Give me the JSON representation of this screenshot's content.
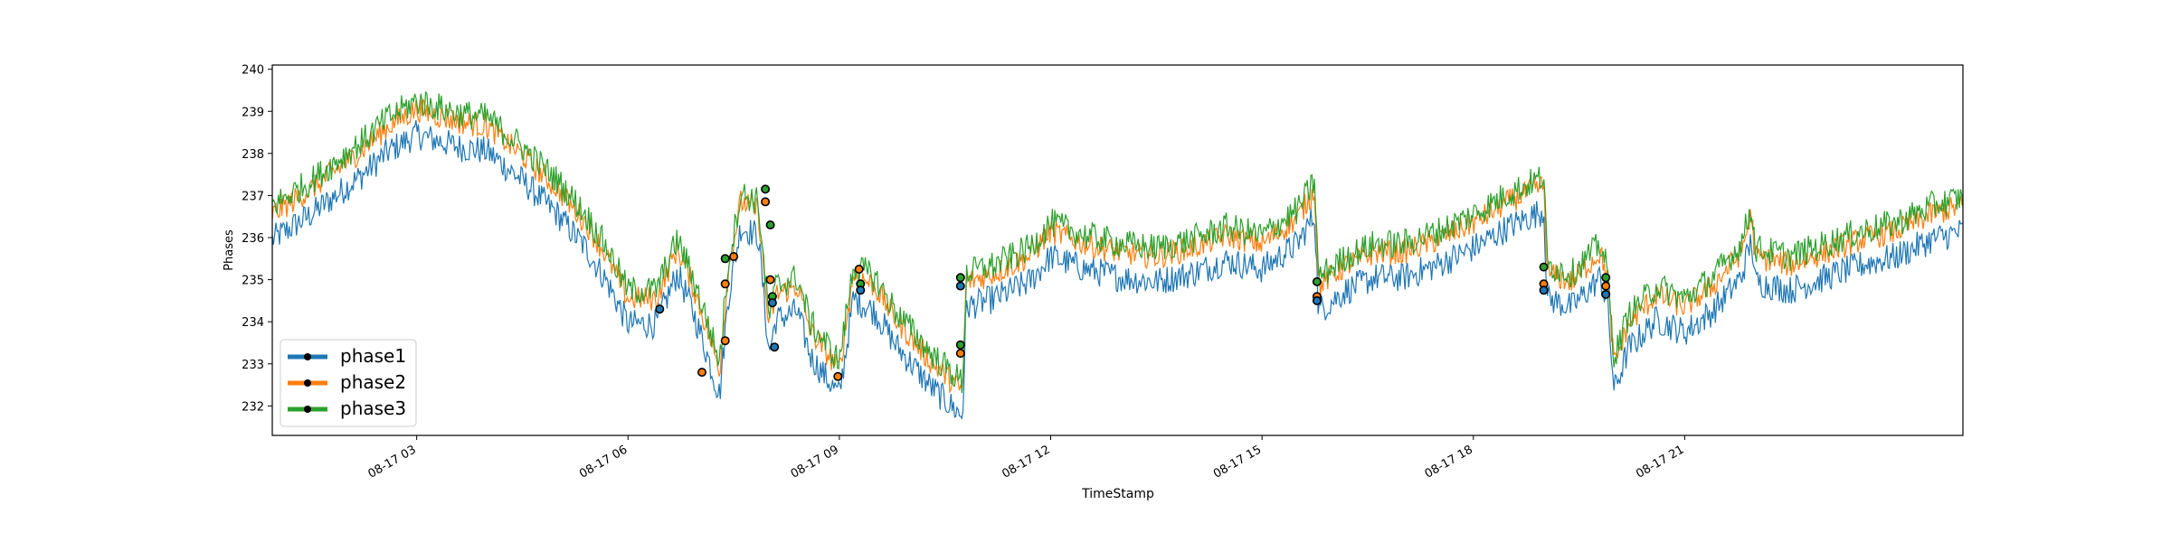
{
  "chart_data": {
    "type": "line",
    "title": "",
    "xlabel": "TimeStamp",
    "ylabel": "Phases",
    "x_range_hours": [
      0.95,
      24.95
    ],
    "ylim": [
      231.3,
      240.1
    ],
    "yticks": [
      232,
      233,
      234,
      235,
      236,
      237,
      238,
      239,
      240
    ],
    "xticks": [
      {
        "hour": 3,
        "label": "08-17 03"
      },
      {
        "hour": 6,
        "label": "08-17 06"
      },
      {
        "hour": 9,
        "label": "08-17 09"
      },
      {
        "hour": 12,
        "label": "08-17 12"
      },
      {
        "hour": 15,
        "label": "08-17 15"
      },
      {
        "hour": 18,
        "label": "08-17 18"
      },
      {
        "hour": 21,
        "label": "08-17 21"
      }
    ],
    "grid": false,
    "legend_position": "lower-left",
    "series": [
      {
        "name": "phase1",
        "color": "#1f77b4",
        "offset": -0.25,
        "noise": 0.35,
        "points": [
          [
            0.95,
            236.2
          ],
          [
            1.5,
            236.8
          ],
          [
            2.2,
            237.7
          ],
          [
            2.6,
            238.3
          ],
          [
            3.0,
            238.7
          ],
          [
            3.6,
            238.4
          ],
          [
            4.0,
            238.3
          ],
          [
            4.5,
            237.6
          ],
          [
            5.0,
            236.8
          ],
          [
            5.4,
            236.0
          ],
          [
            5.7,
            235.2
          ],
          [
            6.0,
            234.2
          ],
          [
            6.4,
            234.2
          ],
          [
            6.7,
            235.4
          ],
          [
            6.9,
            234.6
          ],
          [
            7.1,
            233.6
          ],
          [
            7.3,
            232.5
          ],
          [
            7.42,
            234.8
          ],
          [
            7.6,
            236.5
          ],
          [
            7.85,
            236.3
          ],
          [
            8.0,
            233.5
          ],
          [
            8.1,
            234.3
          ],
          [
            8.4,
            234.5
          ],
          [
            8.6,
            233.4
          ],
          [
            9.0,
            232.5
          ],
          [
            9.2,
            234.8
          ],
          [
            9.5,
            234.5
          ],
          [
            9.8,
            233.7
          ],
          [
            10.3,
            232.7
          ],
          [
            10.75,
            232.0
          ],
          [
            10.8,
            234.6
          ],
          [
            11.2,
            234.8
          ],
          [
            11.7,
            235.2
          ],
          [
            12.0,
            235.8
          ],
          [
            12.5,
            235.5
          ],
          [
            13.0,
            235.3
          ],
          [
            13.5,
            235.2
          ],
          [
            14.0,
            235.4
          ],
          [
            14.5,
            235.7
          ],
          [
            15.0,
            235.5
          ],
          [
            15.5,
            236.1
          ],
          [
            15.75,
            236.8
          ],
          [
            15.8,
            234.5
          ],
          [
            16.2,
            235.0
          ],
          [
            16.6,
            235.3
          ],
          [
            17.0,
            235.3
          ],
          [
            17.5,
            235.6
          ],
          [
            18.0,
            236.0
          ],
          [
            18.5,
            236.5
          ],
          [
            19.0,
            236.9
          ],
          [
            19.05,
            234.8
          ],
          [
            19.4,
            234.6
          ],
          [
            19.8,
            235.3
          ],
          [
            19.9,
            234.7
          ],
          [
            20.0,
            232.6
          ],
          [
            20.2,
            233.6
          ],
          [
            20.6,
            234.3
          ],
          [
            21.0,
            234.0
          ],
          [
            21.4,
            234.5
          ],
          [
            21.8,
            235.3
          ],
          [
            21.95,
            236.2
          ],
          [
            22.0,
            235.2
          ],
          [
            22.5,
            235.0
          ],
          [
            23.0,
            235.3
          ],
          [
            23.5,
            235.6
          ],
          [
            24.0,
            235.8
          ],
          [
            24.5,
            236.2
          ],
          [
            24.95,
            236.4
          ]
        ]
      },
      {
        "name": "phase2",
        "color": "#ff7f0e",
        "offset": 0.35,
        "noise": 0.3,
        "points": [
          [
            0.95,
            236.2
          ],
          [
            1.5,
            236.8
          ],
          [
            2.2,
            237.7
          ],
          [
            2.6,
            238.3
          ],
          [
            3.0,
            238.7
          ],
          [
            3.6,
            238.4
          ],
          [
            4.0,
            238.3
          ],
          [
            4.5,
            237.6
          ],
          [
            5.0,
            236.8
          ],
          [
            5.4,
            236.0
          ],
          [
            5.7,
            235.2
          ],
          [
            6.0,
            234.2
          ],
          [
            6.4,
            234.2
          ],
          [
            6.7,
            235.4
          ],
          [
            6.9,
            234.6
          ],
          [
            7.1,
            233.6
          ],
          [
            7.3,
            232.5
          ],
          [
            7.42,
            234.8
          ],
          [
            7.6,
            236.5
          ],
          [
            7.85,
            236.3
          ],
          [
            8.0,
            233.5
          ],
          [
            8.1,
            234.3
          ],
          [
            8.4,
            234.5
          ],
          [
            8.6,
            233.4
          ],
          [
            9.0,
            232.5
          ],
          [
            9.2,
            234.8
          ],
          [
            9.5,
            234.5
          ],
          [
            9.8,
            233.7
          ],
          [
            10.3,
            232.7
          ],
          [
            10.75,
            232.0
          ],
          [
            10.8,
            234.6
          ],
          [
            11.2,
            234.8
          ],
          [
            11.7,
            235.2
          ],
          [
            12.0,
            235.8
          ],
          [
            12.5,
            235.5
          ],
          [
            13.0,
            235.3
          ],
          [
            13.5,
            235.2
          ],
          [
            14.0,
            235.4
          ],
          [
            14.5,
            235.7
          ],
          [
            15.0,
            235.5
          ],
          [
            15.5,
            236.1
          ],
          [
            15.75,
            236.8
          ],
          [
            15.8,
            234.5
          ],
          [
            16.2,
            235.0
          ],
          [
            16.6,
            235.3
          ],
          [
            17.0,
            235.3
          ],
          [
            17.5,
            235.6
          ],
          [
            18.0,
            236.0
          ],
          [
            18.5,
            236.5
          ],
          [
            19.0,
            236.9
          ],
          [
            19.05,
            234.8
          ],
          [
            19.4,
            234.6
          ],
          [
            19.8,
            235.3
          ],
          [
            19.9,
            234.7
          ],
          [
            20.0,
            232.6
          ],
          [
            20.2,
            233.6
          ],
          [
            20.6,
            234.3
          ],
          [
            21.0,
            234.0
          ],
          [
            21.4,
            234.5
          ],
          [
            21.8,
            235.3
          ],
          [
            21.95,
            236.2
          ],
          [
            22.0,
            235.2
          ],
          [
            22.5,
            235.0
          ],
          [
            23.0,
            235.3
          ],
          [
            23.5,
            235.6
          ],
          [
            24.0,
            235.8
          ],
          [
            24.5,
            236.2
          ],
          [
            24.95,
            236.4
          ]
        ]
      },
      {
        "name": "phase3",
        "color": "#2ca02c",
        "offset": 0.55,
        "noise": 0.35,
        "points": [
          [
            0.95,
            236.2
          ],
          [
            1.5,
            236.8
          ],
          [
            2.2,
            237.7
          ],
          [
            2.6,
            238.3
          ],
          [
            3.0,
            238.7
          ],
          [
            3.6,
            238.4
          ],
          [
            4.0,
            238.3
          ],
          [
            4.5,
            237.6
          ],
          [
            5.0,
            236.8
          ],
          [
            5.4,
            236.0
          ],
          [
            5.7,
            235.2
          ],
          [
            6.0,
            234.2
          ],
          [
            6.4,
            234.2
          ],
          [
            6.7,
            235.4
          ],
          [
            6.9,
            234.6
          ],
          [
            7.1,
            233.6
          ],
          [
            7.3,
            232.5
          ],
          [
            7.42,
            234.8
          ],
          [
            7.6,
            236.5
          ],
          [
            7.85,
            236.3
          ],
          [
            8.0,
            233.5
          ],
          [
            8.1,
            234.3
          ],
          [
            8.4,
            234.5
          ],
          [
            8.6,
            233.4
          ],
          [
            9.0,
            232.5
          ],
          [
            9.2,
            234.8
          ],
          [
            9.5,
            234.5
          ],
          [
            9.8,
            233.7
          ],
          [
            10.3,
            232.7
          ],
          [
            10.75,
            232.0
          ],
          [
            10.8,
            234.6
          ],
          [
            11.2,
            234.8
          ],
          [
            11.7,
            235.2
          ],
          [
            12.0,
            235.8
          ],
          [
            12.5,
            235.5
          ],
          [
            13.0,
            235.3
          ],
          [
            13.5,
            235.2
          ],
          [
            14.0,
            235.4
          ],
          [
            14.5,
            235.7
          ],
          [
            15.0,
            235.5
          ],
          [
            15.5,
            236.1
          ],
          [
            15.75,
            236.8
          ],
          [
            15.8,
            234.5
          ],
          [
            16.2,
            235.0
          ],
          [
            16.6,
            235.3
          ],
          [
            17.0,
            235.3
          ],
          [
            17.5,
            235.6
          ],
          [
            18.0,
            236.0
          ],
          [
            18.5,
            236.5
          ],
          [
            19.0,
            236.9
          ],
          [
            19.05,
            234.8
          ],
          [
            19.4,
            234.6
          ],
          [
            19.8,
            235.3
          ],
          [
            19.9,
            234.7
          ],
          [
            20.0,
            232.6
          ],
          [
            20.2,
            233.6
          ],
          [
            20.6,
            234.3
          ],
          [
            21.0,
            234.0
          ],
          [
            21.4,
            234.5
          ],
          [
            21.8,
            235.3
          ],
          [
            21.95,
            236.2
          ],
          [
            22.0,
            235.2
          ],
          [
            22.5,
            235.0
          ],
          [
            23.0,
            235.3
          ],
          [
            23.5,
            235.6
          ],
          [
            24.0,
            235.8
          ],
          [
            24.5,
            236.2
          ],
          [
            24.95,
            236.4
          ]
        ]
      }
    ],
    "markers": [
      {
        "x": 6.45,
        "y": 234.3,
        "fill": "#1f77b4"
      },
      {
        "x": 7.05,
        "y": 232.8,
        "fill": "#ff7f0e"
      },
      {
        "x": 7.38,
        "y": 235.5,
        "fill": "#2ca02c"
      },
      {
        "x": 7.38,
        "y": 234.9,
        "fill": "#ff7f0e"
      },
      {
        "x": 7.38,
        "y": 233.55,
        "fill": "#ff7f0e"
      },
      {
        "x": 7.5,
        "y": 235.55,
        "fill": "#ff7f0e"
      },
      {
        "x": 7.95,
        "y": 237.15,
        "fill": "#2ca02c"
      },
      {
        "x": 7.95,
        "y": 236.85,
        "fill": "#ff7f0e"
      },
      {
        "x": 8.02,
        "y": 236.3,
        "fill": "#2ca02c"
      },
      {
        "x": 8.02,
        "y": 235.0,
        "fill": "#ff7f0e"
      },
      {
        "x": 8.05,
        "y": 234.6,
        "fill": "#2ca02c"
      },
      {
        "x": 8.05,
        "y": 234.45,
        "fill": "#1f77b4"
      },
      {
        "x": 8.08,
        "y": 233.4,
        "fill": "#1f77b4"
      },
      {
        "x": 8.98,
        "y": 232.7,
        "fill": "#ff7f0e"
      },
      {
        "x": 9.28,
        "y": 235.25,
        "fill": "#ff7f0e"
      },
      {
        "x": 9.3,
        "y": 234.9,
        "fill": "#2ca02c"
      },
      {
        "x": 9.3,
        "y": 234.75,
        "fill": "#1f77b4"
      },
      {
        "x": 10.72,
        "y": 235.05,
        "fill": "#2ca02c"
      },
      {
        "x": 10.72,
        "y": 234.85,
        "fill": "#1f77b4"
      },
      {
        "x": 10.72,
        "y": 233.45,
        "fill": "#2ca02c"
      },
      {
        "x": 10.72,
        "y": 233.25,
        "fill": "#ff7f0e"
      },
      {
        "x": 15.78,
        "y": 234.95,
        "fill": "#2ca02c"
      },
      {
        "x": 15.78,
        "y": 234.6,
        "fill": "#ff7f0e"
      },
      {
        "x": 15.78,
        "y": 234.5,
        "fill": "#1f77b4"
      },
      {
        "x": 19.0,
        "y": 235.3,
        "fill": "#2ca02c"
      },
      {
        "x": 19.0,
        "y": 234.9,
        "fill": "#ff7f0e"
      },
      {
        "x": 19.0,
        "y": 234.75,
        "fill": "#1f77b4"
      },
      {
        "x": 19.88,
        "y": 235.05,
        "fill": "#2ca02c"
      },
      {
        "x": 19.88,
        "y": 234.85,
        "fill": "#ff7f0e"
      },
      {
        "x": 19.88,
        "y": 234.65,
        "fill": "#1f77b4"
      }
    ]
  }
}
